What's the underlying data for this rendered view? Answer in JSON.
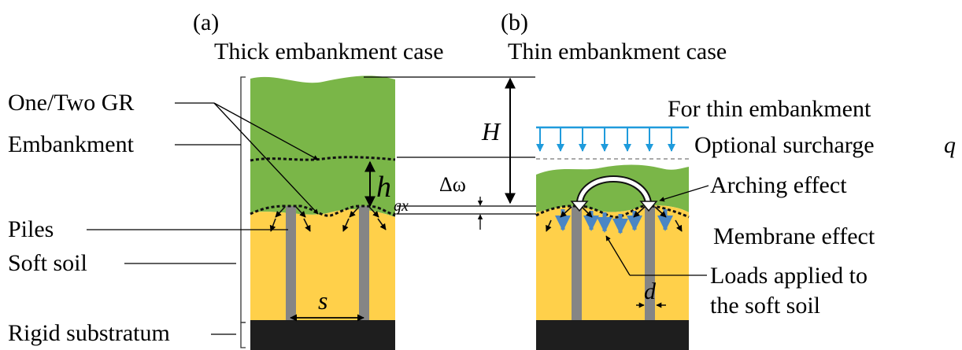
{
  "panel_a": {
    "tag": "(a)",
    "title": "Thick embankment case"
  },
  "panel_b": {
    "tag": "(b)",
    "title": "Thin embankment case"
  },
  "labels": {
    "gr": "One/Two GR",
    "embankment": "Embankment",
    "piles": "Piles",
    "soft_soil": "Soft soil",
    "rigid_substratum": "Rigid substratum",
    "H": "H",
    "h": "h",
    "h_sub": "gx",
    "delta_omega": "Δω",
    "s": "s",
    "d": "d",
    "thin_note_line1": "For thin embankment",
    "thin_note_line2": "Optional surcharge",
    "q": "q",
    "arching": "Arching effect",
    "membrane": "Membrane effect",
    "loads_line1": "Loads applied to",
    "loads_line2": "the soft soil"
  },
  "colors": {
    "embankment": "#7ab648",
    "soft_soil": "#ffd04a",
    "substratum": "#1e1e1e",
    "pile": "#858585",
    "surcharge": "#1f9bdc",
    "load_arrow": "#4a86c5"
  }
}
